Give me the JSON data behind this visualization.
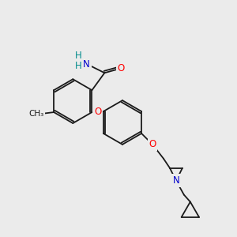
{
  "bg_color": "#ebebeb",
  "bond_color": "#1a1a1a",
  "atom_colors": {
    "O": "#ff0000",
    "N": "#0000cd",
    "H": "#008b8b",
    "C": "#1a1a1a"
  },
  "font_size_atom": 8.5,
  "figsize": [
    3.0,
    3.0
  ],
  "dpi": 100
}
